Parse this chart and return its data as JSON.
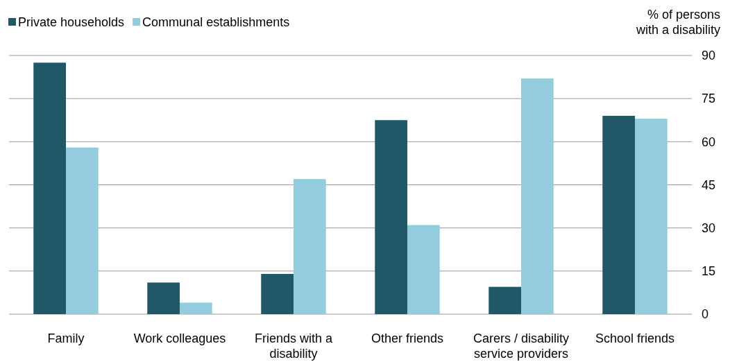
{
  "chart_data": {
    "type": "bar",
    "ylabel": "% of persons with a disability",
    "categories": [
      "Family",
      "Work colleagues",
      "Friends with a disability",
      "Other friends",
      "Carers / disability service providers",
      "School friends"
    ],
    "series": [
      {
        "name": "Private households",
        "color": "#215868",
        "values": [
          87.5,
          11,
          14,
          67.5,
          9.5,
          69
        ]
      },
      {
        "name": "Communal establishments",
        "color": "#93cddd",
        "values": [
          58,
          4,
          47,
          31,
          82,
          68
        ]
      }
    ],
    "ylim": [
      0,
      90
    ],
    "yticks": [
      0,
      15,
      30,
      45,
      60,
      75,
      90
    ],
    "grid": "y",
    "legend": "top left"
  }
}
